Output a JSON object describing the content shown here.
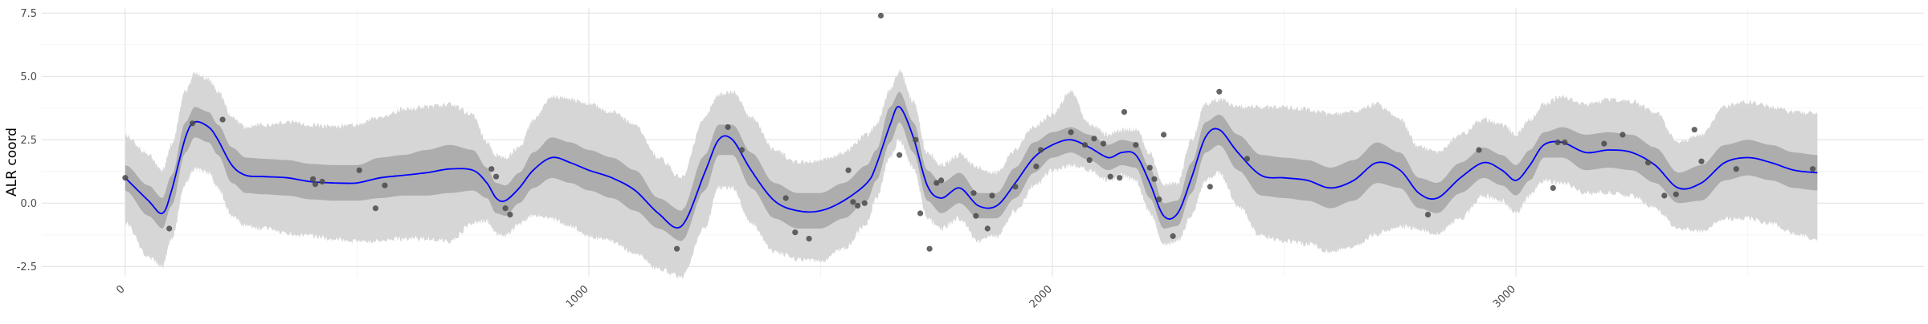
{
  "chart_data": {
    "type": "line",
    "title": "",
    "xlabel": "",
    "ylabel": "ALR coord",
    "xlim": [
      -180,
      3880
    ],
    "ylim": [
      -2.9,
      7.7
    ],
    "x_ticks": [
      0,
      1000,
      2000,
      3000
    ],
    "y_ticks": [
      -2.5,
      0.0,
      2.5,
      5.0,
      7.5
    ],
    "y_tick_labels": [
      "-2.5",
      "0.0",
      "2.5",
      "5.0",
      "7.5"
    ],
    "grid": true,
    "legend": "none",
    "colors": {
      "mean_line": "#0000ff",
      "inner_band": "#adadad",
      "outer_band": "#d6d6d6",
      "points": "#4a4a4a"
    },
    "series": [
      {
        "kind": "mean",
        "x": [
          0,
          50,
          80,
          100,
          130,
          150,
          180,
          200,
          230,
          260,
          300,
          350,
          400,
          450,
          500,
          550,
          600,
          650,
          700,
          750,
          780,
          800,
          820,
          850,
          880,
          920,
          960,
          1000,
          1050,
          1100,
          1150,
          1200,
          1250,
          1280,
          1310,
          1350,
          1400,
          1450,
          1500,
          1550,
          1600,
          1620,
          1650,
          1670,
          1700,
          1730,
          1760,
          1800,
          1840,
          1880,
          1920,
          1960,
          2000,
          2040,
          2080,
          2120,
          2150,
          2180,
          2210,
          2240,
          2270,
          2300,
          2330,
          2360,
          2400,
          2450,
          2500,
          2550,
          2600,
          2650,
          2700,
          2750,
          2790,
          2830,
          2880,
          2930,
          2970,
          3000,
          3030,
          3060,
          3100,
          3150,
          3200,
          3250,
          3300,
          3350,
          3400,
          3450,
          3500,
          3550,
          3600,
          3650
        ],
        "y": [
          1.0,
          0.1,
          -0.4,
          0.5,
          2.6,
          3.2,
          3.0,
          2.5,
          1.5,
          1.1,
          1.05,
          1.0,
          0.85,
          0.8,
          0.8,
          1.0,
          1.1,
          1.2,
          1.35,
          1.3,
          0.8,
          0.2,
          0.1,
          0.6,
          1.3,
          1.8,
          1.6,
          1.3,
          1.0,
          0.5,
          -0.4,
          -0.9,
          1.2,
          2.5,
          2.5,
          1.3,
          0.1,
          -0.3,
          -0.3,
          0.1,
          0.8,
          1.5,
          3.1,
          3.8,
          2.6,
          0.7,
          0.2,
          0.6,
          -0.1,
          -0.1,
          0.8,
          1.8,
          2.3,
          2.5,
          2.2,
          1.8,
          2.0,
          1.9,
          0.8,
          -0.5,
          -0.4,
          1.0,
          2.6,
          2.9,
          2.0,
          1.1,
          1.0,
          0.9,
          0.6,
          0.9,
          1.6,
          1.3,
          0.4,
          0.2,
          1.0,
          1.6,
          1.3,
          0.9,
          1.5,
          2.3,
          2.4,
          2.0,
          2.1,
          2.0,
          1.5,
          0.6,
          0.8,
          1.6,
          1.8,
          1.6,
          1.3,
          1.2
        ]
      },
      {
        "kind": "inner_band",
        "x": [
          0,
          50,
          80,
          100,
          130,
          150,
          180,
          200,
          230,
          260,
          300,
          350,
          400,
          450,
          500,
          550,
          600,
          650,
          700,
          750,
          780,
          800,
          820,
          850,
          880,
          920,
          960,
          1000,
          1050,
          1100,
          1150,
          1200,
          1250,
          1280,
          1310,
          1350,
          1400,
          1450,
          1500,
          1550,
          1600,
          1620,
          1650,
          1670,
          1700,
          1730,
          1760,
          1800,
          1840,
          1880,
          1920,
          1960,
          2000,
          2040,
          2080,
          2120,
          2150,
          2180,
          2210,
          2240,
          2270,
          2300,
          2330,
          2360,
          2400,
          2450,
          2500,
          2550,
          2600,
          2650,
          2700,
          2750,
          2790,
          2830,
          2880,
          2930,
          2970,
          3000,
          3030,
          3060,
          3100,
          3150,
          3200,
          3250,
          3300,
          3350,
          3400,
          3450,
          3500,
          3550,
          3600,
          3650
        ],
        "lower": [
          0.5,
          -0.5,
          -1.0,
          -0.1,
          2.0,
          2.6,
          2.4,
          1.9,
          0.8,
          0.4,
          0.35,
          0.3,
          0.15,
          0.1,
          0.1,
          0.2,
          0.3,
          0.3,
          0.4,
          0.5,
          0.2,
          -0.4,
          -0.5,
          0.0,
          0.6,
          1.0,
          0.8,
          0.5,
          0.2,
          -0.3,
          -1.0,
          -1.5,
          0.5,
          1.9,
          1.9,
          0.6,
          -0.6,
          -1.0,
          -1.0,
          -0.6,
          0.1,
          0.9,
          2.4,
          3.2,
          2.0,
          0.1,
          -0.4,
          0.0,
          -0.6,
          -0.6,
          0.2,
          1.2,
          1.8,
          2.0,
          1.7,
          1.3,
          1.5,
          1.4,
          0.2,
          -1.0,
          -0.9,
          0.4,
          2.0,
          2.3,
          1.3,
          0.3,
          0.2,
          0.1,
          -0.2,
          0.1,
          0.8,
          0.6,
          -0.2,
          -0.4,
          0.4,
          1.0,
          0.7,
          0.3,
          0.9,
          1.8,
          1.8,
          1.3,
          1.4,
          1.3,
          0.8,
          0.0,
          0.1,
          0.9,
          1.1,
          0.9,
          0.6,
          0.5
        ],
        "upper": [
          1.5,
          0.7,
          0.2,
          1.1,
          3.2,
          3.8,
          3.6,
          3.1,
          2.2,
          1.8,
          1.75,
          1.7,
          1.55,
          1.5,
          1.5,
          1.8,
          1.9,
          2.1,
          2.3,
          2.1,
          1.4,
          0.8,
          0.7,
          1.2,
          2.0,
          2.6,
          2.4,
          2.1,
          1.8,
          1.3,
          0.2,
          -0.3,
          1.9,
          3.1,
          3.1,
          2.0,
          0.8,
          0.4,
          0.4,
          0.8,
          1.5,
          2.1,
          3.8,
          4.4,
          3.2,
          1.3,
          0.8,
          1.2,
          0.4,
          0.4,
          1.4,
          2.4,
          2.8,
          3.0,
          2.7,
          2.3,
          2.5,
          2.4,
          1.4,
          0.0,
          0.1,
          1.6,
          3.2,
          3.5,
          2.7,
          1.9,
          1.8,
          1.7,
          1.4,
          1.7,
          2.4,
          2.0,
          1.0,
          0.8,
          1.6,
          2.2,
          1.9,
          1.5,
          2.1,
          2.8,
          3.0,
          2.7,
          2.8,
          2.7,
          2.2,
          1.2,
          1.5,
          2.3,
          2.5,
          2.3,
          2.0,
          1.9
        ]
      },
      {
        "kind": "outer_band",
        "x": [
          0,
          50,
          80,
          100,
          130,
          150,
          180,
          200,
          230,
          260,
          300,
          350,
          400,
          450,
          500,
          550,
          600,
          650,
          700,
          750,
          780,
          800,
          820,
          850,
          880,
          920,
          960,
          1000,
          1050,
          1100,
          1150,
          1200,
          1250,
          1280,
          1310,
          1350,
          1400,
          1450,
          1500,
          1550,
          1600,
          1620,
          1650,
          1670,
          1700,
          1730,
          1760,
          1800,
          1840,
          1880,
          1920,
          1960,
          2000,
          2040,
          2080,
          2120,
          2150,
          2180,
          2210,
          2240,
          2270,
          2300,
          2330,
          2360,
          2400,
          2450,
          2500,
          2550,
          2600,
          2650,
          2700,
          2750,
          2790,
          2830,
          2880,
          2930,
          2970,
          3000,
          3030,
          3060,
          3100,
          3150,
          3200,
          3250,
          3300,
          3350,
          3400,
          3450,
          3500,
          3550,
          3600,
          3650
        ],
        "lower": [
          -0.8,
          -2.1,
          -2.5,
          -1.4,
          0.8,
          1.4,
          1.2,
          0.6,
          -0.5,
          -0.9,
          -1.0,
          -1.2,
          -1.3,
          -1.4,
          -1.5,
          -1.5,
          -1.4,
          -1.4,
          -1.5,
          -0.8,
          -0.7,
          -1.2,
          -1.3,
          -0.8,
          -0.5,
          -0.6,
          -0.9,
          -1.3,
          -1.5,
          -2.0,
          -2.6,
          -2.9,
          -1.0,
          0.6,
          0.6,
          -0.8,
          -1.9,
          -2.2,
          -2.3,
          -1.8,
          -0.8,
          0.2,
          1.8,
          2.5,
          1.4,
          -0.6,
          -1.0,
          -0.6,
          -1.5,
          -1.3,
          -0.3,
          0.7,
          1.3,
          1.5,
          1.3,
          0.9,
          1.1,
          0.9,
          -0.4,
          -1.6,
          -1.5,
          -0.5,
          0.9,
          1.2,
          -0.1,
          -1.3,
          -1.5,
          -1.6,
          -1.9,
          -1.7,
          -1.2,
          -0.9,
          -1.0,
          -1.2,
          -0.6,
          0.3,
          0.1,
          -0.4,
          0.3,
          0.9,
          0.8,
          0.4,
          0.4,
          0.3,
          -0.2,
          -1.0,
          -1.1,
          -0.6,
          -0.6,
          -0.8,
          -1.2,
          -1.4
        ],
        "upper": [
          2.7,
          1.9,
          1.3,
          2.3,
          4.4,
          5.1,
          4.9,
          4.4,
          3.4,
          3.0,
          3.1,
          3.2,
          3.1,
          3.0,
          3.1,
          3.4,
          3.7,
          3.8,
          3.9,
          3.5,
          2.4,
          1.9,
          1.8,
          2.2,
          3.3,
          4.2,
          4.1,
          3.9,
          3.6,
          3.1,
          1.8,
          1.0,
          3.4,
          4.3,
          4.4,
          3.4,
          2.1,
          1.6,
          1.7,
          2.0,
          2.7,
          3.1,
          4.5,
          5.2,
          4.0,
          2.0,
          1.5,
          1.9,
          1.4,
          1.2,
          2.1,
          3.0,
          3.5,
          4.4,
          3.1,
          2.7,
          2.9,
          2.9,
          2.0,
          0.7,
          0.8,
          2.5,
          3.9,
          4.1,
          3.8,
          3.8,
          3.8,
          3.7,
          3.5,
          3.6,
          3.9,
          3.3,
          2.2,
          2.0,
          2.7,
          3.3,
          3.1,
          2.7,
          3.3,
          3.9,
          4.2,
          3.9,
          4.1,
          4.0,
          3.6,
          2.4,
          2.7,
          3.8,
          4.0,
          3.8,
          3.6,
          3.5
        ]
      },
      {
        "kind": "points",
        "x": [
          0,
          95,
          145,
          210,
          405,
          410,
          425,
          505,
          540,
          560,
          790,
          800,
          820,
          830,
          1190,
          1300,
          1330,
          1425,
          1445,
          1475,
          1560,
          1570,
          1580,
          1595,
          1630,
          1670,
          1705,
          1715,
          1735,
          1750,
          1760,
          1830,
          1835,
          1860,
          1870,
          1920,
          1965,
          1975,
          2040,
          2070,
          2080,
          2090,
          2110,
          2125,
          2145,
          2155,
          2180,
          2210,
          2220,
          2230,
          2240,
          2260,
          2340,
          2360,
          2420,
          2810,
          2920,
          3080,
          3090,
          3105,
          3190,
          3230,
          3285,
          3320,
          3345,
          3385,
          3400,
          3475,
          3640
        ],
        "y": [
          1.0,
          -1.0,
          3.15,
          3.3,
          0.95,
          0.75,
          0.85,
          1.3,
          -0.2,
          0.7,
          1.35,
          1.05,
          -0.2,
          -0.45,
          -1.8,
          3.0,
          2.1,
          0.2,
          -1.15,
          -1.4,
          1.3,
          0.05,
          -0.1,
          0.0,
          7.4,
          1.9,
          2.5,
          -0.4,
          -1.8,
          0.8,
          0.9,
          0.4,
          -0.5,
          -1.0,
          0.3,
          0.65,
          1.45,
          2.1,
          2.8,
          2.3,
          1.7,
          2.55,
          2.35,
          1.05,
          1.0,
          3.6,
          2.3,
          1.4,
          0.95,
          0.15,
          2.7,
          -1.3,
          0.65,
          4.4,
          1.75,
          -0.45,
          2.1,
          0.6,
          2.4,
          2.4,
          2.35,
          2.7,
          1.6,
          0.3,
          0.35,
          2.9,
          1.65,
          1.35,
          1.35
        ]
      }
    ]
  }
}
